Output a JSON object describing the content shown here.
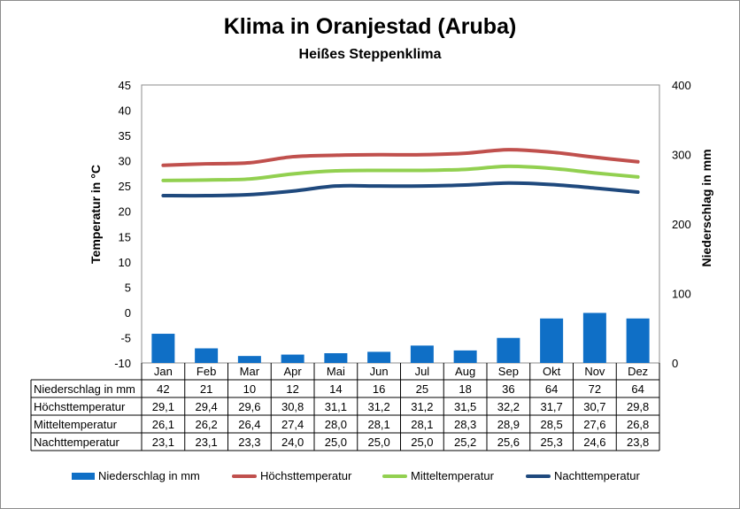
{
  "title": "Klima in Oranjestad (Aruba)",
  "subtitle": "Heißes Steppenklima",
  "colors": {
    "niederschlag": "#0f6fc6",
    "hoechst": "#c0504d",
    "mittel": "#92d050",
    "nacht": "#1f497d"
  },
  "chart_data": {
    "type": "bar",
    "title": "Klima in Oranjestad (Aruba)",
    "subtitle": "Heißes Steppenklima",
    "categories": [
      "Jan",
      "Feb",
      "Mar",
      "Apr",
      "Mai",
      "Jun",
      "Jul",
      "Aug",
      "Sep",
      "Okt",
      "Nov",
      "Dez"
    ],
    "ylabel_left": "Temperatur in °C",
    "ylabel_right": "Niederschlag in mm",
    "ylim_left": [
      -10,
      45
    ],
    "ylim_right": [
      0,
      400
    ],
    "yticks_left": [
      "45",
      "40",
      "35",
      "30",
      "25",
      "20",
      "15",
      "10",
      "5",
      "0",
      "-5",
      "-10"
    ],
    "yticks_right": [
      "400",
      "300",
      "200",
      "100",
      "0"
    ],
    "legend_position": "bottom",
    "series": [
      {
        "name": "Niederschlag in mm",
        "type": "bar",
        "axis": "right",
        "values": [
          42,
          21,
          10,
          12,
          14,
          16,
          25,
          18,
          36,
          64,
          72,
          64
        ]
      },
      {
        "name": "Höchsttemperatur",
        "type": "line",
        "axis": "left",
        "values": [
          29.1,
          29.4,
          29.6,
          30.8,
          31.1,
          31.2,
          31.2,
          31.5,
          32.2,
          31.7,
          30.7,
          29.8
        ]
      },
      {
        "name": "Mitteltemperatur",
        "type": "line",
        "axis": "left",
        "values": [
          26.1,
          26.2,
          26.4,
          27.4,
          28.0,
          28.1,
          28.1,
          28.3,
          28.9,
          28.5,
          27.6,
          26.8
        ]
      },
      {
        "name": "Nachttemperatur",
        "type": "line",
        "axis": "left",
        "values": [
          23.1,
          23.1,
          23.3,
          24.0,
          25.0,
          25.0,
          25.0,
          25.2,
          25.6,
          25.3,
          24.6,
          23.8
        ]
      }
    ],
    "table": {
      "rows": [
        {
          "label": "Niederschlag in mm",
          "cells": [
            "42",
            "21",
            "10",
            "12",
            "14",
            "16",
            "25",
            "18",
            "36",
            "64",
            "72",
            "64"
          ]
        },
        {
          "label": "Höchsttemperatur",
          "cells": [
            "29,1",
            "29,4",
            "29,6",
            "30,8",
            "31,1",
            "31,2",
            "31,2",
            "31,5",
            "32,2",
            "31,7",
            "30,7",
            "29,8"
          ]
        },
        {
          "label": "Mitteltemperatur",
          "cells": [
            "26,1",
            "26,2",
            "26,4",
            "27,4",
            "28,0",
            "28,1",
            "28,1",
            "28,3",
            "28,9",
            "28,5",
            "27,6",
            "26,8"
          ]
        },
        {
          "label": "Nachttemperatur",
          "cells": [
            "23,1",
            "23,1",
            "23,3",
            "24,0",
            "25,0",
            "25,0",
            "25,0",
            "25,2",
            "25,6",
            "25,3",
            "24,6",
            "23,8"
          ]
        }
      ]
    }
  },
  "legend": [
    {
      "label": "Niederschlag in mm",
      "kind": "bar",
      "color": "#0f6fc6"
    },
    {
      "label": "Höchsttemperatur",
      "kind": "line",
      "color": "#c0504d"
    },
    {
      "label": "Mitteltemperatur",
      "kind": "line",
      "color": "#92d050"
    },
    {
      "label": "Nachttemperatur",
      "kind": "line",
      "color": "#1f497d"
    }
  ]
}
